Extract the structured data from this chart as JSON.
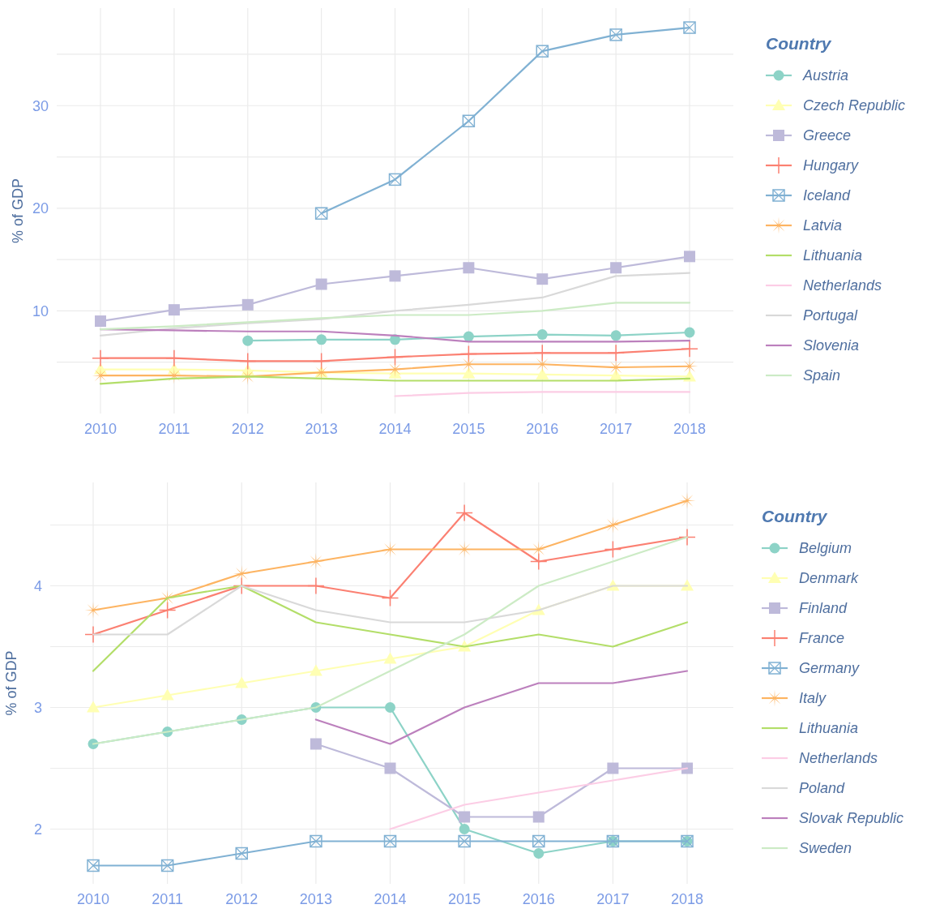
{
  "chart_data": [
    {
      "type": "line",
      "ylabel": "% of GDP",
      "legend_title": "Country",
      "legend": "right",
      "grid": true,
      "categories": [
        "2010",
        "2011",
        "2012",
        "2013",
        "2014",
        "2015",
        "2016",
        "2017",
        "2018"
      ],
      "ylim": [
        0,
        39.5
      ],
      "yticks": [
        {
          "value": 5,
          "label": null
        },
        10,
        {
          "value": 15,
          "label": null
        },
        20,
        {
          "value": 25,
          "label": null
        },
        30,
        {
          "value": 35,
          "label": null
        }
      ],
      "series": [
        {
          "name": "Austria",
          "color": "#8dd3c7",
          "marker": "circle",
          "values": [
            null,
            null,
            7.1,
            7.2,
            7.2,
            7.5,
            7.7,
            7.6,
            7.9
          ]
        },
        {
          "name": "Czech Republic",
          "color": "#ffffb3",
          "marker": "triangle",
          "values": [
            4.3,
            4.3,
            4.2,
            4.0,
            3.9,
            3.9,
            3.8,
            3.7,
            3.6
          ]
        },
        {
          "name": "Greece",
          "color": "#bebada",
          "marker": "square",
          "values": [
            9.0,
            10.1,
            10.6,
            12.6,
            13.4,
            14.2,
            13.1,
            14.2,
            15.3
          ]
        },
        {
          "name": "Hungary",
          "color": "#fb8072",
          "marker": "cross",
          "values": [
            5.4,
            5.4,
            5.1,
            5.1,
            5.5,
            5.8,
            5.9,
            5.9,
            6.3
          ]
        },
        {
          "name": "Iceland",
          "color": "#80b1d3",
          "marker": "square-x",
          "values": [
            null,
            null,
            null,
            19.5,
            22.8,
            28.5,
            35.3,
            36.9,
            37.6
          ]
        },
        {
          "name": "Latvia",
          "color": "#fdb462",
          "marker": "star",
          "values": [
            3.7,
            3.7,
            3.6,
            4.0,
            4.3,
            4.8,
            4.8,
            4.5,
            4.6
          ]
        },
        {
          "name": "Lithuania",
          "color": "#b3de69",
          "marker": "none",
          "values": [
            2.9,
            3.4,
            3.6,
            3.4,
            3.2,
            3.2,
            3.2,
            3.2,
            3.4
          ]
        },
        {
          "name": "Netherlands",
          "color": "#fccde5",
          "marker": "none",
          "values": [
            null,
            null,
            null,
            null,
            1.7,
            2.0,
            2.1,
            2.1,
            2.1
          ]
        },
        {
          "name": "Portugal",
          "color": "#d9d9d9",
          "marker": "none",
          "values": [
            7.6,
            8.3,
            8.8,
            9.2,
            10.0,
            10.6,
            11.3,
            13.4,
            13.7
          ]
        },
        {
          "name": "Slovenia",
          "color": "#bc80bd",
          "marker": "none",
          "values": [
            8.2,
            8.1,
            8.0,
            8.0,
            7.6,
            7.0,
            7.0,
            7.0,
            7.1
          ]
        },
        {
          "name": "Spain",
          "color": "#ccebc5",
          "marker": "none",
          "values": [
            8.2,
            8.5,
            8.9,
            9.3,
            9.6,
            9.6,
            10.0,
            10.8,
            10.8
          ]
        }
      ]
    },
    {
      "type": "line",
      "ylabel": "% of GDP",
      "legend_title": "Country",
      "legend": "right",
      "grid": true,
      "categories": [
        "2010",
        "2011",
        "2012",
        "2013",
        "2014",
        "2015",
        "2016",
        "2017",
        "2018"
      ],
      "ylim": [
        1.55,
        4.85
      ],
      "yticks": [
        2,
        {
          "value": 2.5,
          "label": null
        },
        3,
        {
          "value": 3.5,
          "label": null
        },
        4,
        {
          "value": 4.5,
          "label": null
        }
      ],
      "series": [
        {
          "name": "Belgium",
          "color": "#8dd3c7",
          "marker": "circle",
          "values": [
            2.7,
            2.8,
            2.9,
            3.0,
            3.0,
            2.0,
            1.8,
            1.9,
            1.9
          ]
        },
        {
          "name": "Denmark",
          "color": "#ffffb3",
          "marker": "triangle",
          "values": [
            3.0,
            3.1,
            3.2,
            3.3,
            3.4,
            3.5,
            3.8,
            4.0,
            4.0
          ]
        },
        {
          "name": "Finland",
          "color": "#bebada",
          "marker": "square",
          "values": [
            null,
            null,
            null,
            2.7,
            2.5,
            2.1,
            2.1,
            2.5,
            2.5
          ]
        },
        {
          "name": "France",
          "color": "#fb8072",
          "marker": "cross",
          "values": [
            3.6,
            3.8,
            4.0,
            4.0,
            3.9,
            4.6,
            4.2,
            4.3,
            4.4
          ]
        },
        {
          "name": "Germany",
          "color": "#80b1d3",
          "marker": "square-x",
          "values": [
            1.7,
            1.7,
            1.8,
            1.9,
            1.9,
            1.9,
            1.9,
            1.9,
            1.9
          ]
        },
        {
          "name": "Italy",
          "color": "#fdb462",
          "marker": "star",
          "values": [
            3.8,
            3.9,
            4.1,
            4.2,
            4.3,
            4.3,
            4.3,
            4.5,
            4.7
          ]
        },
        {
          "name": "Lithuania",
          "color": "#b3de69",
          "marker": "none",
          "values": [
            3.3,
            3.9,
            4.0,
            3.7,
            3.6,
            3.5,
            3.6,
            3.5,
            3.7
          ]
        },
        {
          "name": "Netherlands",
          "color": "#fccde5",
          "marker": "none",
          "values": [
            null,
            null,
            null,
            null,
            2.0,
            2.2,
            2.3,
            2.4,
            2.5
          ]
        },
        {
          "name": "Poland",
          "color": "#d9d9d9",
          "marker": "none",
          "values": [
            3.6,
            3.6,
            4.0,
            3.8,
            3.7,
            3.7,
            3.8,
            4.0,
            4.0
          ]
        },
        {
          "name": "Slovak Republic",
          "color": "#bc80bd",
          "marker": "none",
          "values": [
            null,
            null,
            null,
            2.9,
            2.7,
            3.0,
            3.2,
            3.2,
            3.3
          ]
        },
        {
          "name": "Sweden",
          "color": "#ccebc5",
          "marker": "none",
          "values": [
            2.7,
            2.8,
            2.9,
            3.0,
            3.3,
            3.6,
            4.0,
            4.2,
            4.4
          ]
        }
      ]
    }
  ]
}
